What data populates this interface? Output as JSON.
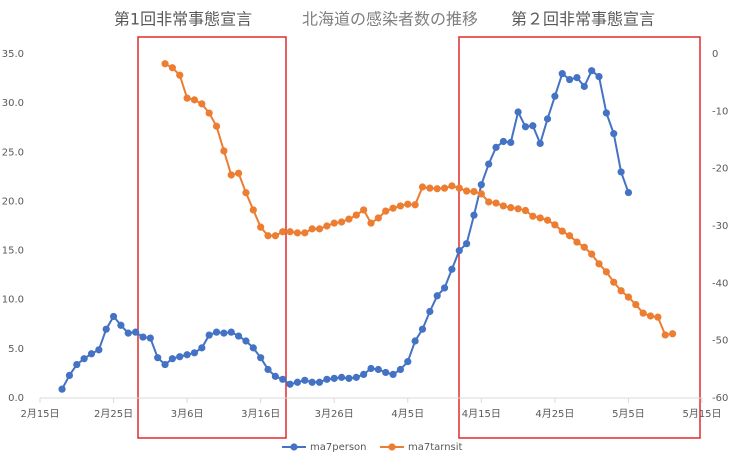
{
  "chart_data": {
    "type": "line",
    "title": "北海道の感染者数の推移",
    "annotations": [
      {
        "text": "第1回非常事態宣言",
        "color": "#e02b2b"
      },
      {
        "text": "第２回非常事態宣言",
        "color": "#e02b2b"
      }
    ],
    "x": [
      "2月18日",
      "2月19日",
      "2月20日",
      "2月21日",
      "2月22日",
      "2月23日",
      "2月24日",
      "2月25日",
      "2月26日",
      "2月27日",
      "2月28日",
      "2月29日",
      "3月1日",
      "3月2日",
      "3月3日",
      "3月4日",
      "3月5日",
      "3月6日",
      "3月7日",
      "3月8日",
      "3月9日",
      "3月10日",
      "3月11日",
      "3月12日",
      "3月13日",
      "3月14日",
      "3月15日",
      "3月16日",
      "3月17日",
      "3月18日",
      "3月19日",
      "3月20日",
      "3月21日",
      "3月22日",
      "3月23日",
      "3月24日",
      "3月25日",
      "3月26日",
      "3月27日",
      "3月28日",
      "3月29日",
      "3月30日",
      "3月31日",
      "4月1日",
      "4月2日",
      "4月3日",
      "4月4日",
      "4月5日",
      "4月6日",
      "4月7日",
      "4月8日",
      "4月9日",
      "4月10日",
      "4月11日",
      "4月12日",
      "4月13日",
      "4月14日",
      "4月15日",
      "4月16日",
      "4月17日",
      "4月18日",
      "4月19日",
      "4月20日",
      "4月21日",
      "4月22日",
      "4月23日",
      "4月24日",
      "4月25日",
      "4月26日",
      "4月27日",
      "4月28日",
      "4月29日",
      "4月30日",
      "5月1日",
      "5月2日",
      "5月3日",
      "5月4日",
      "5月5日",
      "5月6日",
      "5月7日",
      "5月8日",
      "5月9日",
      "5月10日",
      "5月11日"
    ],
    "xlim": [
      "2月15日",
      "5月15日"
    ],
    "xticks": [
      "2月15日",
      "2月25日",
      "3月6日",
      "3月16日",
      "3月26日",
      "4月5日",
      "4月15日",
      "4月25日",
      "5月5日",
      "5月15日"
    ],
    "ylim": [
      0,
      35
    ],
    "yticks": [
      {
        "value": 0,
        "label": "0.0"
      },
      {
        "value": 5,
        "label": "5.0"
      },
      {
        "value": 10,
        "label": "10.0"
      },
      {
        "value": 15,
        "label": "15.0"
      },
      {
        "value": 20,
        "label": "20.0"
      },
      {
        "value": 25,
        "label": "25.0"
      },
      {
        "value": 30,
        "label": "30.0"
      },
      {
        "value": 35,
        "label": "35.0"
      }
    ],
    "y2lim": [
      -60,
      0
    ],
    "y2ticks": [
      -60,
      -50,
      -40,
      -30,
      -20,
      -10,
      0
    ],
    "grid": false,
    "legend": "bottom",
    "series": [
      {
        "name": "ma7person",
        "color": "#4472c4",
        "values": [
          0.9,
          2.3,
          3.4,
          4.0,
          4.5,
          4.9,
          7.0,
          8.3,
          7.4,
          6.6,
          6.7,
          6.2,
          6.1,
          4.1,
          3.4,
          4.0,
          4.2,
          4.4,
          4.6,
          5.1,
          6.4,
          6.7,
          6.6,
          6.7,
          6.3,
          5.8,
          5.1,
          4.1,
          2.9,
          2.2,
          1.9,
          1.4,
          1.6,
          1.8,
          1.6,
          1.6,
          1.9,
          2.0,
          2.1,
          2.0,
          2.1,
          2.4,
          3.0,
          2.9,
          2.6,
          2.4,
          2.9,
          3.7,
          5.8,
          7.0,
          8.8,
          10.4,
          11.2,
          13.1,
          15.0,
          15.7,
          18.6,
          21.7,
          23.8,
          25.5,
          26.1,
          26.0,
          29.1,
          27.6,
          27.7,
          25.9,
          28.4,
          30.7,
          33.0,
          32.4,
          32.6,
          31.7,
          33.3,
          32.7,
          29.0,
          26.9,
          23.0,
          20.9,
          null,
          null,
          null,
          null,
          null,
          null
        ]
      },
      {
        "name": "ma7tarnsit",
        "color": "#ed7d31",
        "axis": "y2",
        "values": [
          null,
          null,
          null,
          null,
          null,
          null,
          null,
          null,
          null,
          null,
          null,
          null,
          null,
          null,
          -1.7,
          -2.4,
          -3.7,
          -7.7,
          -8.0,
          -8.7,
          -10.3,
          -12.6,
          -16.9,
          -21.1,
          -20.8,
          -24.2,
          -27.2,
          -30.2,
          -31.7,
          -31.7,
          -31.0,
          -31.0,
          -31.2,
          -31.2,
          -30.5,
          -30.5,
          -30.0,
          -29.5,
          -29.3,
          -28.8,
          -28.1,
          -27.2,
          -29.5,
          -28.6,
          -27.4,
          -26.9,
          -26.5,
          -26.2,
          -26.3,
          -23.2,
          -23.4,
          -23.5,
          -23.4,
          -23.0,
          -23.4,
          -23.9,
          -24.0,
          -24.4,
          -25.8,
          -26.0,
          -26.5,
          -26.8,
          -27.0,
          -27.3,
          -28.3,
          -28.6,
          -29.0,
          -29.8,
          -30.9,
          -31.7,
          -32.8,
          -33.7,
          -34.9,
          -36.6,
          -38.0,
          -39.8,
          -41.3,
          -42.4,
          -43.7,
          -45.2,
          -45.7,
          -45.9,
          -49.0,
          -48.8
        ]
      }
    ]
  }
}
